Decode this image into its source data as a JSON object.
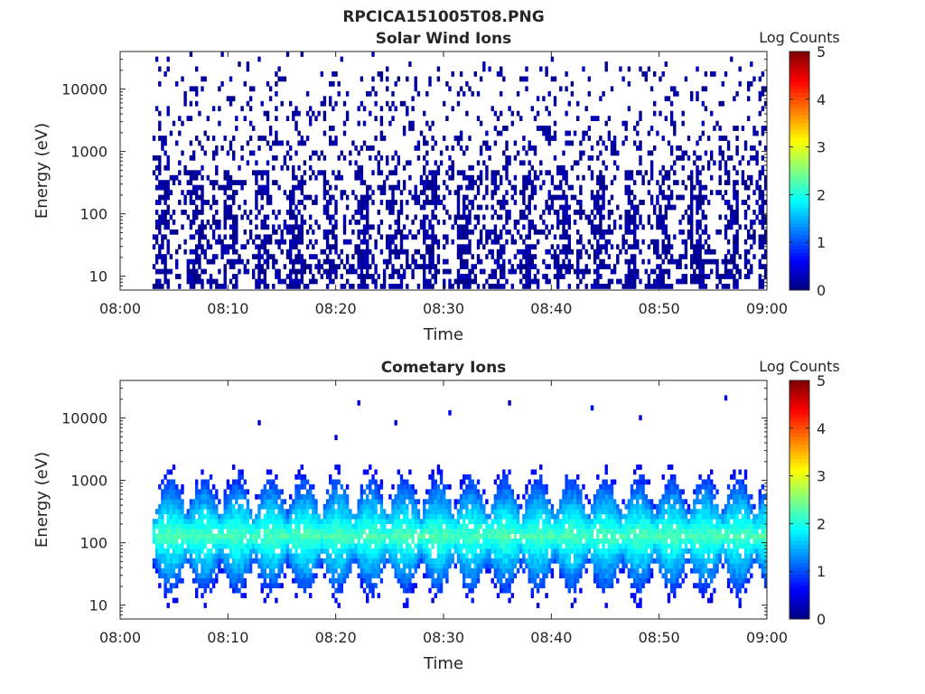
{
  "figure_title": "RPCICA151005T08.PNG",
  "chart_data": [
    {
      "type": "heatmap",
      "title": "Solar Wind Ions",
      "xlabel": "Time",
      "ylabel": "Energy (eV)",
      "xlim": [
        "08:00",
        "09:00"
      ],
      "xticks": [
        "08:00",
        "08:10",
        "08:20",
        "08:30",
        "08:40",
        "08:50",
        "09:00"
      ],
      "ylim": [
        6,
        40000
      ],
      "yscale": "log",
      "yticks": [
        "10",
        "100",
        "1000",
        "10000"
      ],
      "data_start": "08:03",
      "data_end": "09:00",
      "colorbar": {
        "label": "Log Counts",
        "min": 0,
        "max": 5,
        "ticks": [
          "0",
          "1",
          "2",
          "3",
          "4",
          "5"
        ],
        "colormap": "jet"
      },
      "description_values": {
        "dominant_log_counts": 0,
        "peak_log_counts": 0.3
      }
    },
    {
      "type": "heatmap",
      "title": "Cometary Ions",
      "xlabel": "Time",
      "ylabel": "Energy (eV)",
      "xlim": [
        "08:00",
        "09:00"
      ],
      "xticks": [
        "08:00",
        "08:10",
        "08:20",
        "08:30",
        "08:40",
        "08:50",
        "09:00"
      ],
      "ylim": [
        6,
        40000
      ],
      "yscale": "log",
      "yticks": [
        "10",
        "100",
        "1000",
        "10000"
      ],
      "data_start": "08:03",
      "data_end": "09:00",
      "band_peak_energy_ev": 120,
      "band_line_energy_ev": 45,
      "oscillation_period_min": 3.1,
      "colorbar": {
        "label": "Log Counts",
        "min": 0,
        "max": 5,
        "ticks": [
          "0",
          "1",
          "2",
          "3",
          "4",
          "5"
        ],
        "colormap": "jet"
      },
      "description_values": {
        "dominant_log_counts": 1,
        "peak_log_counts": 1.8
      }
    }
  ]
}
